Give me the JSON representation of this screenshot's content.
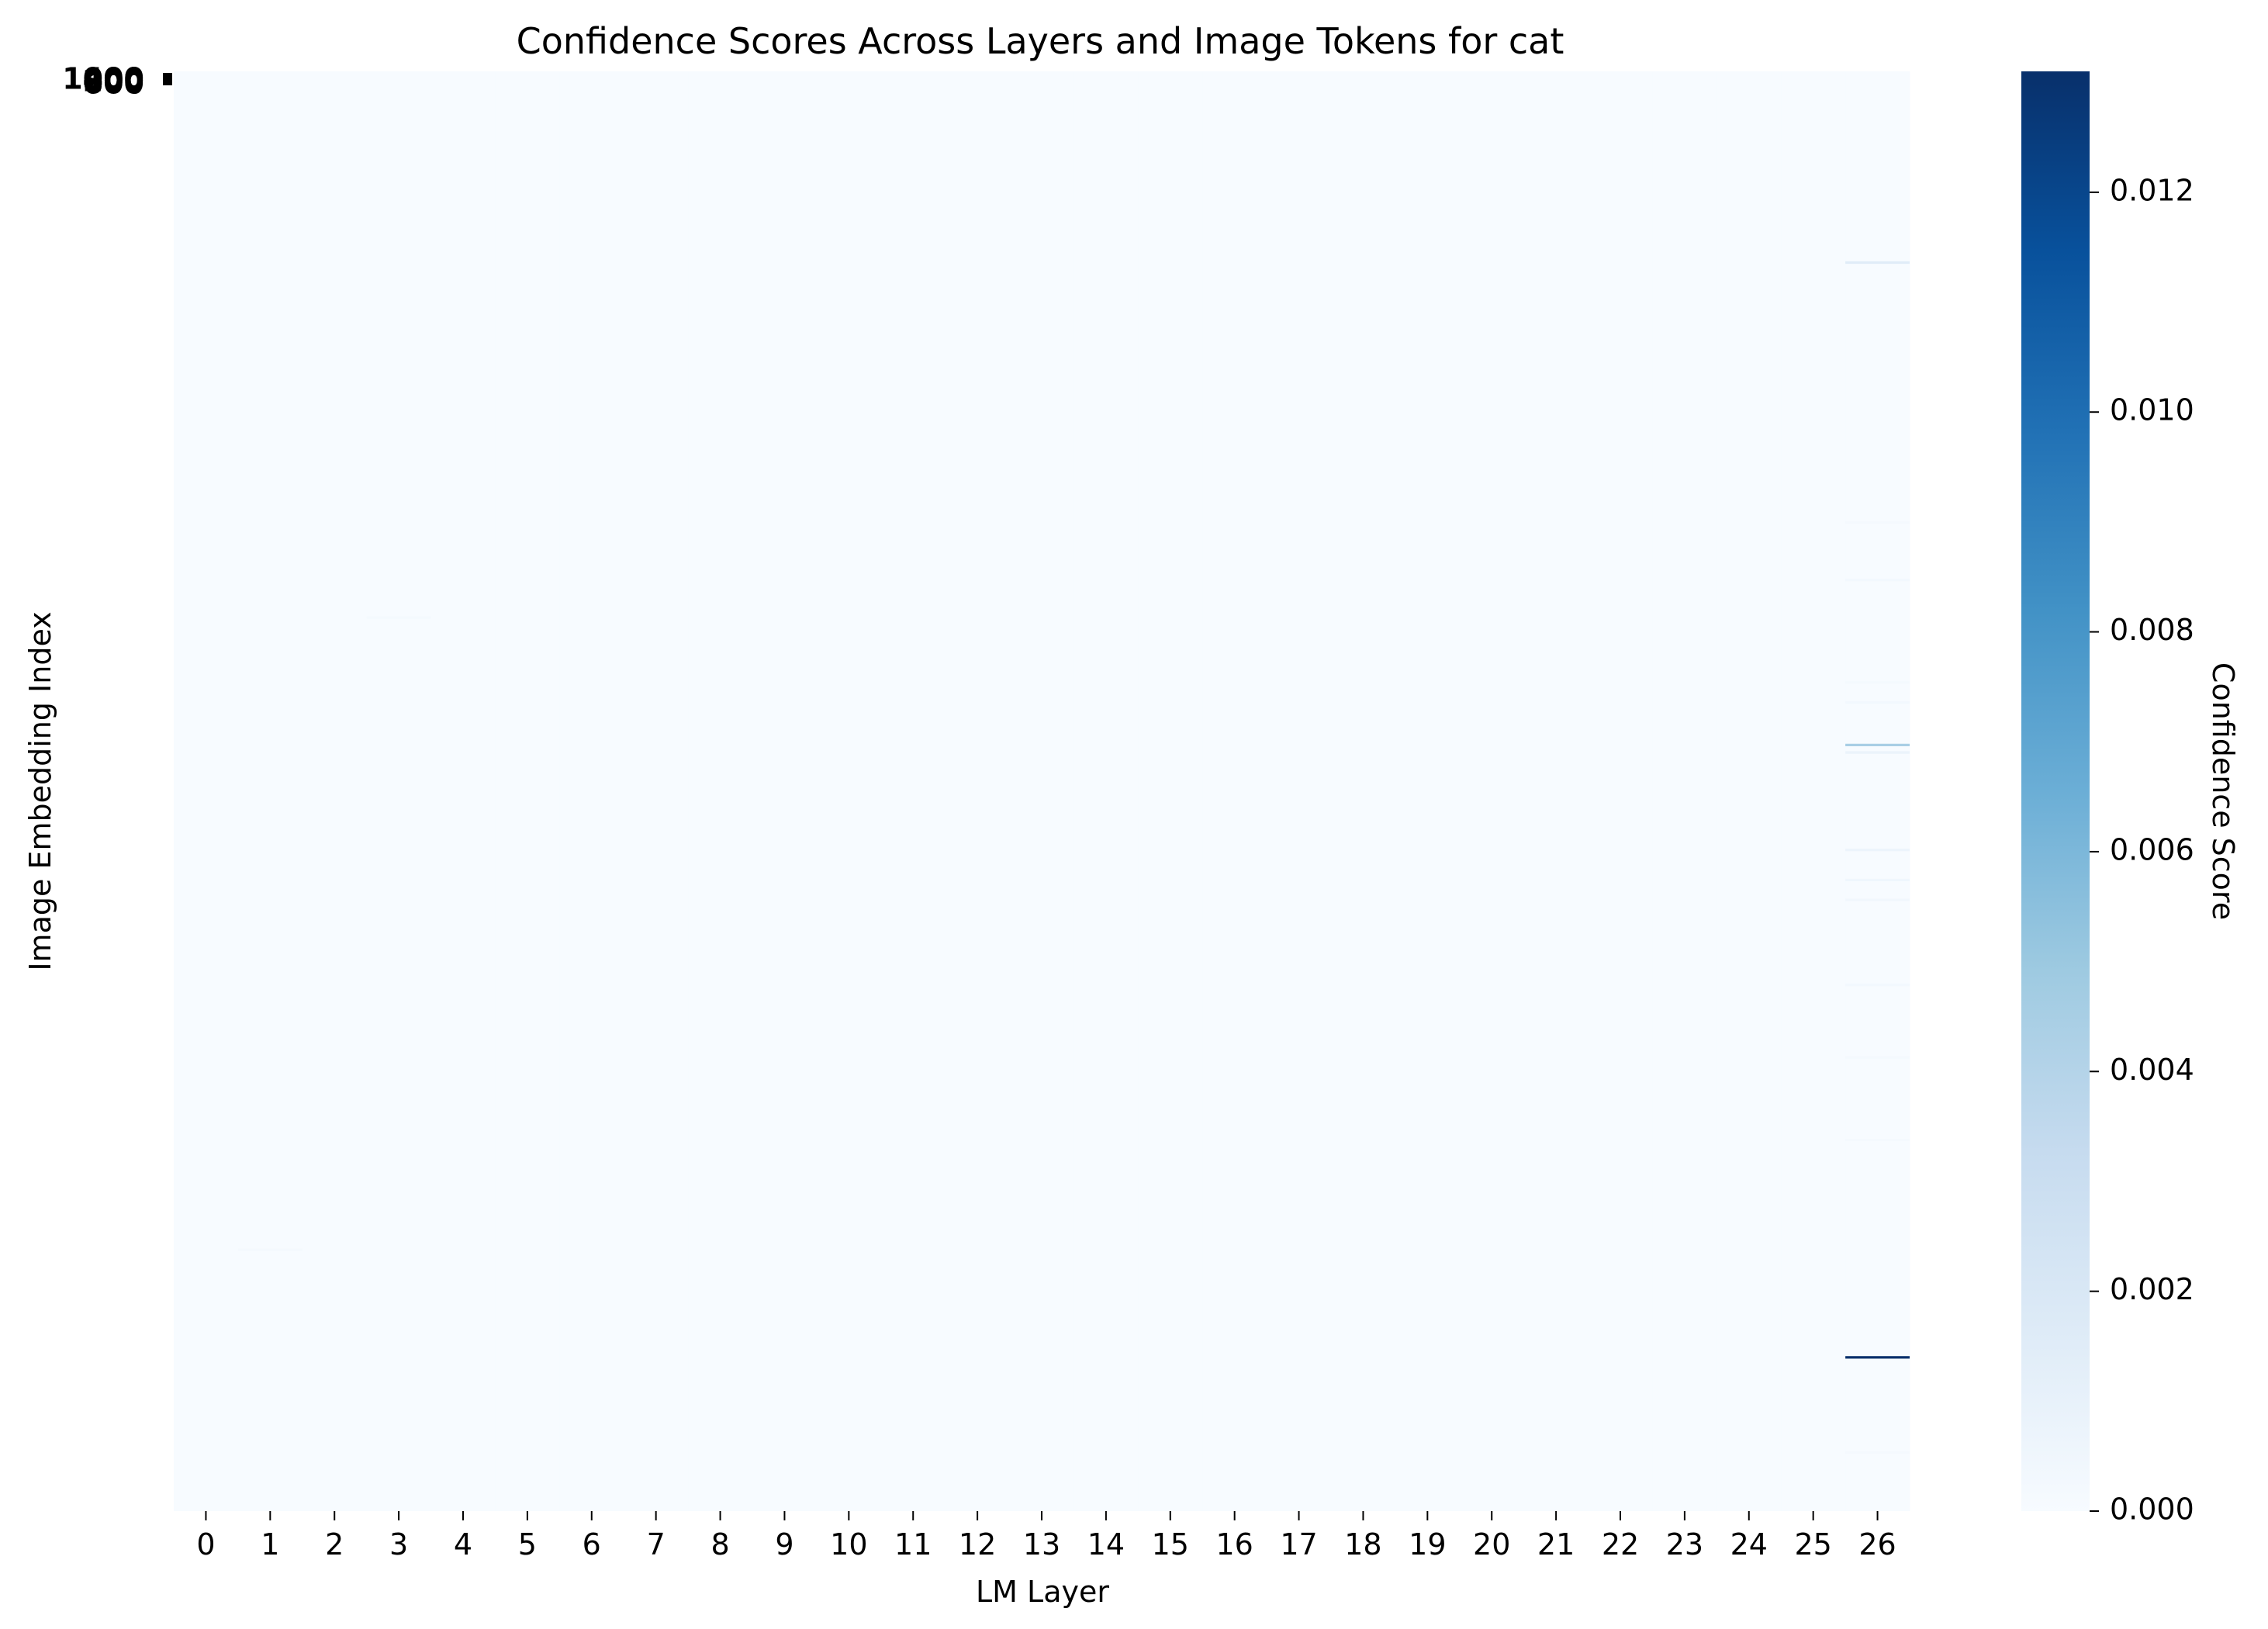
{
  "chart_data": {
    "type": "heatmap",
    "title": "Confidence Scores Across Layers and Image Tokens for cat",
    "xlabel": "LM Layer",
    "ylabel": "Image Embedding Index",
    "colorbar_label": "Confidence Score",
    "colormap": "Blues",
    "colormap_stops": [
      "#f7fbff",
      "#deebf7",
      "#c6dbef",
      "#9ecae1",
      "#6baed6",
      "#4292c6",
      "#2171b5",
      "#08519c",
      "#08306b"
    ],
    "x_categories": [
      "0",
      "1",
      "2",
      "3",
      "4",
      "5",
      "6",
      "7",
      "8",
      "9",
      "10",
      "11",
      "12",
      "13",
      "14",
      "15",
      "16",
      "17",
      "18",
      "19",
      "20",
      "21",
      "22",
      "23",
      "24",
      "25",
      "26"
    ],
    "y_range": [
      0,
      576
    ],
    "y_tick_labels_overlapping": [
      "1000",
      "800",
      "600",
      "400",
      "200",
      "0"
    ],
    "colorbar_range": [
      0.0,
      0.0131
    ],
    "colorbar_ticks": [
      "0.000",
      "0.002",
      "0.004",
      "0.006",
      "0.008",
      "0.010",
      "0.012"
    ],
    "colorbar_tick_values": [
      0.0,
      0.002,
      0.004,
      0.006,
      0.008,
      0.01,
      0.012
    ],
    "background_value": 0.0,
    "notable_cells": [
      {
        "layer": 26,
        "index": 76,
        "value": 0.0015
      },
      {
        "layer": 26,
        "index": 180,
        "value": 0.0002
      },
      {
        "layer": 26,
        "index": 203,
        "value": 0.0003
      },
      {
        "layer": 26,
        "index": 244,
        "value": 0.0002
      },
      {
        "layer": 26,
        "index": 252,
        "value": 0.0003
      },
      {
        "layer": 26,
        "index": 269,
        "value": 0.0045
      },
      {
        "layer": 26,
        "index": 272,
        "value": 0.0008
      },
      {
        "layer": 26,
        "index": 311,
        "value": 0.0007
      },
      {
        "layer": 26,
        "index": 323,
        "value": 0.0005
      },
      {
        "layer": 26,
        "index": 331,
        "value": 0.0004
      },
      {
        "layer": 26,
        "index": 365,
        "value": 0.0003
      },
      {
        "layer": 26,
        "index": 394,
        "value": 0.0002
      },
      {
        "layer": 26,
        "index": 427,
        "value": 0.0002
      },
      {
        "layer": 26,
        "index": 514,
        "value": 0.0131
      },
      {
        "layer": 26,
        "index": 552,
        "value": 0.0002
      },
      {
        "layer": 3,
        "index": 218,
        "value": 0.0002
      },
      {
        "layer": 1,
        "index": 471,
        "value": 0.0002
      }
    ]
  }
}
